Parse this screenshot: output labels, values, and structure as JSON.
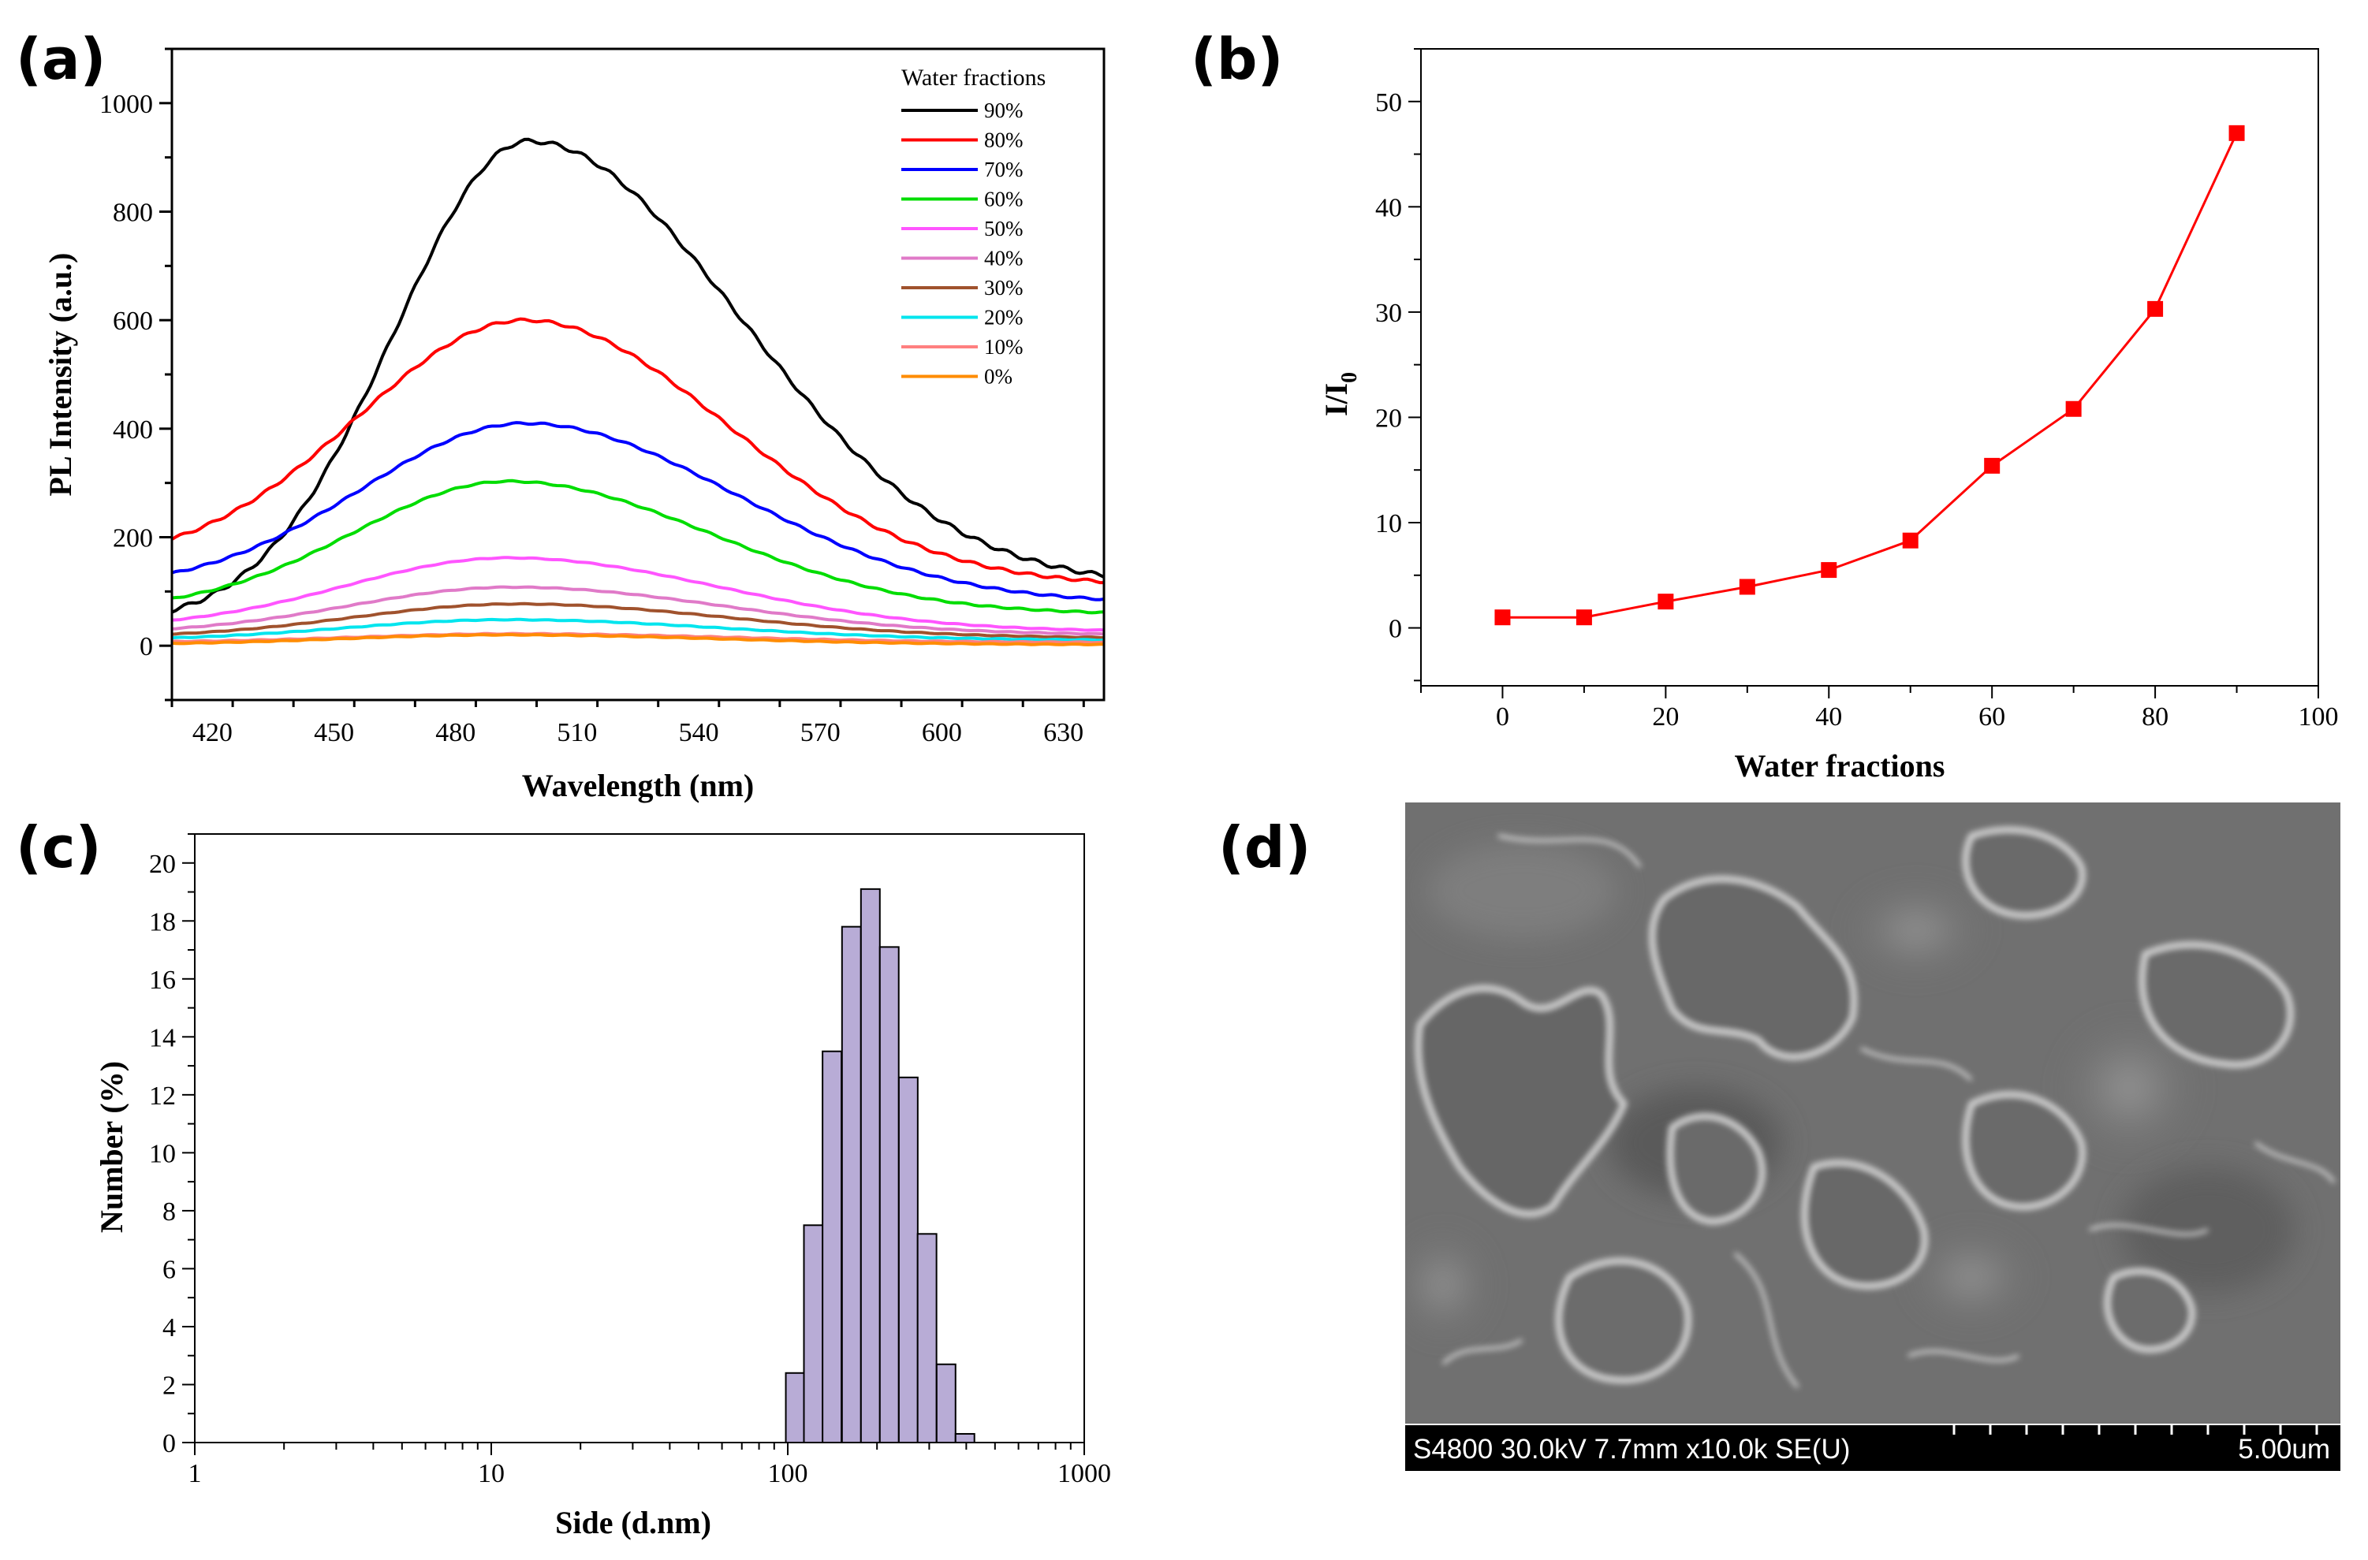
{
  "panels": {
    "a": {
      "label": "(a)"
    },
    "b": {
      "label": "(b)"
    },
    "c": {
      "label": "(c)"
    },
    "d": {
      "label": "(d)"
    }
  },
  "chart_data": [
    {
      "panel": "a",
      "type": "line",
      "title": "",
      "xlabel": "Wavelength (nm)",
      "ylabel": "PL Intensity (a.u.)",
      "xlim": [
        410,
        640
      ],
      "ylim": [
        -100,
        1100
      ],
      "xticks": [
        420,
        450,
        480,
        510,
        540,
        570,
        600,
        630
      ],
      "yticks": [
        0,
        200,
        400,
        600,
        800,
        1000
      ],
      "legend_title": "Water fractions",
      "legend_position": "top-right",
      "grid": false,
      "series": [
        {
          "name": "90%",
          "color": "#000000",
          "peak": 930,
          "peak_x": 498,
          "sigma_left": 33,
          "sigma_right": 52,
          "base_left": 40,
          "base_right": 110
        },
        {
          "name": "80%",
          "color": "#ff0000",
          "peak": 600,
          "peak_x": 497,
          "sigma_left": 41,
          "sigma_right": 50,
          "base_left": 150,
          "base_right": 110
        },
        {
          "name": "70%",
          "color": "#0000ff",
          "peak": 410,
          "peak_x": 497,
          "sigma_left": 40,
          "sigma_right": 52,
          "base_left": 105,
          "base_right": 78
        },
        {
          "name": "60%",
          "color": "#00dd00",
          "peak": 303,
          "peak_x": 493,
          "sigma_left": 38,
          "sigma_right": 50,
          "base_left": 65,
          "base_right": 58
        },
        {
          "name": "50%",
          "color": "#ff55ff",
          "peak": 162,
          "peak_x": 493,
          "sigma_left": 40,
          "sigma_right": 52,
          "base_left": 32,
          "base_right": 26
        },
        {
          "name": "40%",
          "color": "#e07ac8",
          "peak": 108,
          "peak_x": 494,
          "sigma_left": 40,
          "sigma_right": 52,
          "base_left": 22,
          "base_right": 20
        },
        {
          "name": "30%",
          "color": "#a0522d",
          "peak": 77,
          "peak_x": 495,
          "sigma_left": 40,
          "sigma_right": 52,
          "base_left": 15,
          "base_right": 14
        },
        {
          "name": "20%",
          "color": "#00e5ee",
          "peak": 48,
          "peak_x": 493,
          "sigma_left": 40,
          "sigma_right": 52,
          "base_left": 10,
          "base_right": 10
        },
        {
          "name": "10%",
          "color": "#ff7f7f",
          "peak": 22,
          "peak_x": 495,
          "sigma_left": 40,
          "sigma_right": 52,
          "base_left": 6,
          "base_right": 6
        },
        {
          "name": " 0%",
          "color": "#ff8c00",
          "peak": 20,
          "peak_x": 492,
          "sigma_left": 40,
          "sigma_right": 52,
          "base_left": 2,
          "base_right": 2
        }
      ]
    },
    {
      "panel": "b",
      "type": "line",
      "title": "",
      "xlabel": "Water fractions",
      "ylabel": "I/I",
      "ylabel_subscript": "0",
      "xlim": [
        -10,
        100
      ],
      "ylim": [
        -5.5,
        55
      ],
      "xticks": [
        0,
        20,
        40,
        60,
        80,
        100
      ],
      "yticks": [
        0,
        10,
        20,
        30,
        40,
        50
      ],
      "color": "#ff0000",
      "grid": false,
      "x": [
        0,
        10,
        20,
        30,
        40,
        50,
        60,
        70,
        80,
        90
      ],
      "y": [
        1.0,
        1.0,
        2.5,
        3.9,
        5.5,
        8.3,
        15.4,
        20.8,
        30.3,
        47.0
      ]
    },
    {
      "panel": "c",
      "type": "bar",
      "title": "",
      "xlabel": "Side (d.nm)",
      "ylabel": "Number (%)",
      "xscale": "log",
      "xlim": [
        1,
        1000
      ],
      "ylim": [
        0,
        21
      ],
      "xticks": [
        1,
        10,
        100,
        1000
      ],
      "yticks": [
        0,
        2,
        4,
        6,
        8,
        10,
        12,
        14,
        16,
        18,
        20
      ],
      "bar_color": "#b8acd6",
      "grid": false,
      "x": [
        106,
        122,
        141,
        164,
        190,
        220,
        255,
        295,
        342,
        396
      ],
      "values": [
        2.4,
        7.5,
        13.5,
        17.8,
        19.1,
        17.1,
        12.6,
        7.2,
        2.7,
        0.3
      ]
    }
  ],
  "sem": {
    "info": "S4800 30.0kV 7.7mm x10.0k SE(U)",
    "scale": "5.00um"
  }
}
